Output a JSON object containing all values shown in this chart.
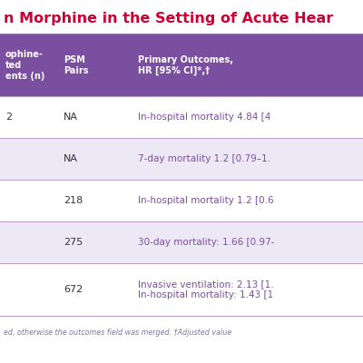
{
  "title": "n Morphine in the Setting of Acute Hear",
  "title_color": "#cc0033",
  "title_fontsize": 11.5,
  "header_bg": "#7b4fa0",
  "header_text_color": "#ffffff",
  "row_bg_odd": "#ffffff",
  "row_bg_even": "#ede8f5",
  "separator_color": "#b89ecb",
  "outcome_text_color": "#7b4fa0",
  "footnote_color": "#7a7a9a",
  "footnote_fontsize": 5.8,
  "col1_header": "ophine-\nted\nents (n)",
  "col2_header": "PSM\nPairs",
  "col3_header": "Primary Outcomes,\nHR [95% CI]*,†",
  "rows": [
    {
      "col1": "2",
      "col2": "NA",
      "col3": "In-hospital mortality 4.84 [4"
    },
    {
      "col1": "",
      "col2": "NA",
      "col3": "7-day mortality 1.2 [0.79–1."
    },
    {
      "col1": "",
      "col2": "218",
      "col3": "In-hospital mortality 1.2 [0.6"
    },
    {
      "col1": "",
      "col2": "275",
      "col3": "30-day mortality: 1.66 [0.97-"
    },
    {
      "col1": "",
      "col2": "672",
      "col3": "Invasive ventilation: 2.13 [1.\nIn-hospital mortality: 1.43 [1"
    }
  ],
  "footnote": "ed, otherwise the outcomes field was merged. †Adjusted value",
  "title_line_color": "#8855aa",
  "fig_width": 4.0,
  "fig_height": 4.0,
  "dpi": 100
}
